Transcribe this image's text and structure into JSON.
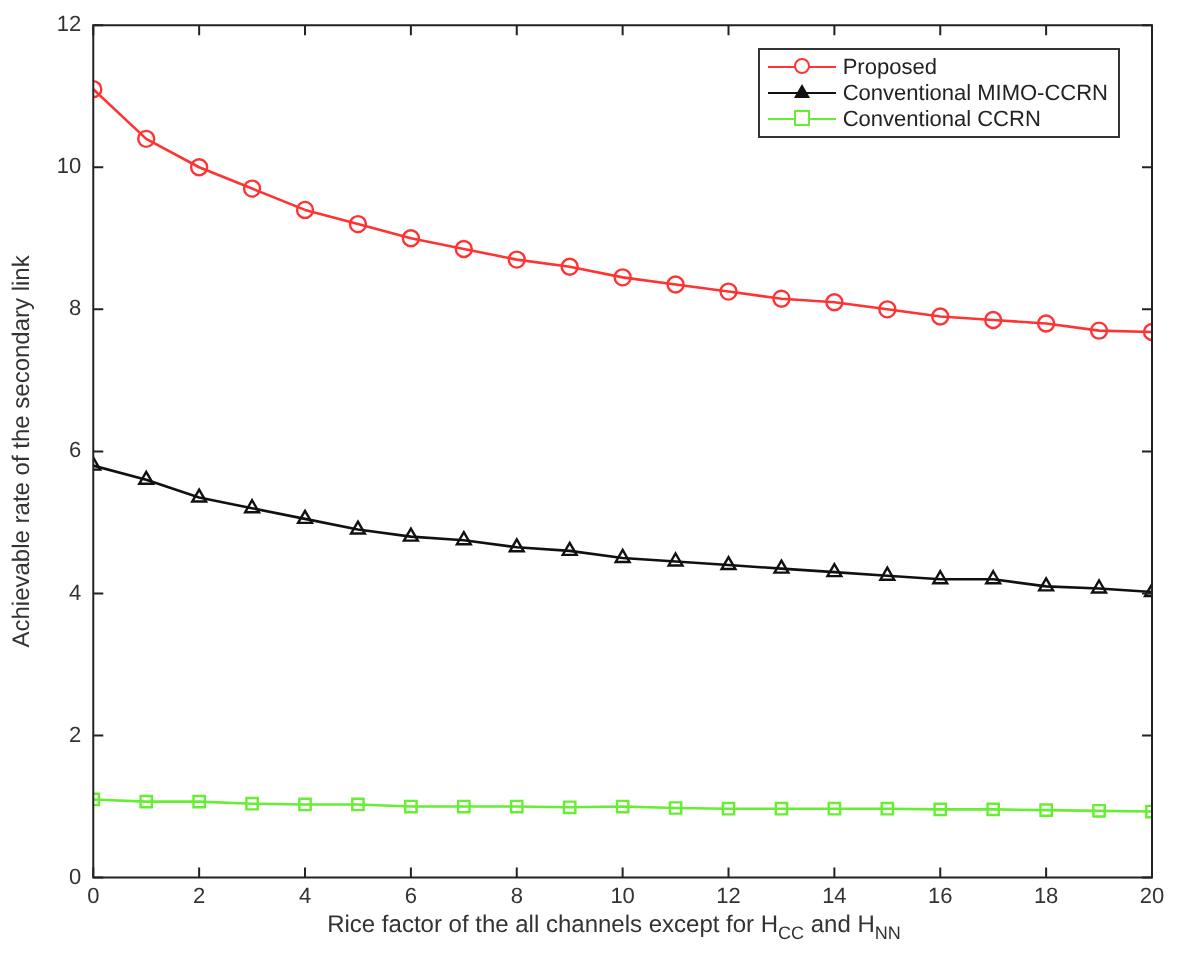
{
  "chart_data": {
    "type": "line",
    "xlabel": "Rice factor of the all channels except for H$_{CC}$ and H$_{NN}$",
    "ylabel": "Achievable rate of the secondary link",
    "x": [
      0,
      1,
      2,
      3,
      4,
      5,
      6,
      7,
      8,
      9,
      10,
      11,
      12,
      13,
      14,
      15,
      16,
      17,
      18,
      19,
      20
    ],
    "xlim": [
      0,
      20
    ],
    "xticks": [
      0,
      2,
      4,
      6,
      8,
      10,
      12,
      14,
      16,
      18,
      20
    ],
    "ylim": [
      0,
      12
    ],
    "yticks": [
      0,
      2,
      4,
      6,
      8,
      10,
      12
    ],
    "grid": false,
    "legend": "top right",
    "line_style": "solid",
    "series": [
      {
        "name": "Proposed",
        "color": "#ff3333",
        "marker": "circle",
        "values": [
          11.1,
          10.4,
          10.0,
          9.7,
          9.4,
          9.2,
          9.0,
          8.85,
          8.7,
          8.6,
          8.45,
          8.35,
          8.25,
          8.15,
          8.1,
          8.0,
          7.9,
          7.85,
          7.8,
          7.7,
          7.68
        ]
      },
      {
        "name": "Conventional MIMO-CCRN",
        "color": "#111111",
        "marker": "triangle",
        "values": [
          5.8,
          5.6,
          5.35,
          5.2,
          5.05,
          4.9,
          4.8,
          4.75,
          4.65,
          4.6,
          4.5,
          4.45,
          4.4,
          4.35,
          4.3,
          4.25,
          4.2,
          4.2,
          4.1,
          4.07,
          4.02
        ]
      },
      {
        "name": "Conventional CCRN",
        "color": "#66ee33",
        "marker": "square",
        "values": [
          1.1,
          1.07,
          1.07,
          1.04,
          1.03,
          1.03,
          1.0,
          1.0,
          1.0,
          0.99,
          1.0,
          0.98,
          0.97,
          0.97,
          0.97,
          0.97,
          0.96,
          0.96,
          0.95,
          0.94,
          0.93
        ]
      }
    ]
  }
}
